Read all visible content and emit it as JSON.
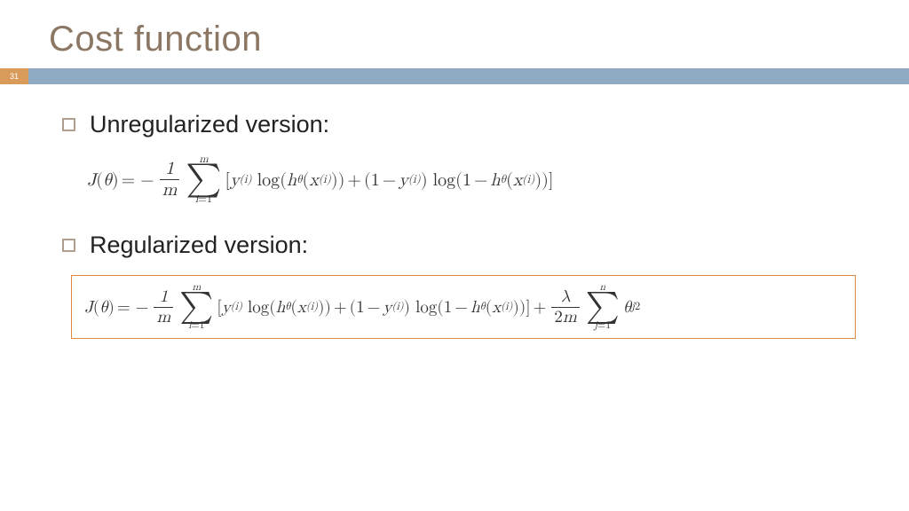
{
  "slide": {
    "number": "31",
    "title": "Cost function",
    "title_color": "#8b7763",
    "accent_left_color": "#d99b5a",
    "accent_right_color": "#8fabc4",
    "background_color": "#ffffff"
  },
  "bullets": [
    {
      "label": "Unregularized version:"
    },
    {
      "label": "Regularized version:"
    }
  ],
  "math": {
    "label_J": "J",
    "label_theta": "θ",
    "label_m": "m",
    "label_n": "n",
    "label_i": "i",
    "label_j": "j",
    "label_y": "y",
    "label_x": "x",
    "label_h": "h",
    "label_lambda": "λ",
    "label_log": "log",
    "label_one": "1",
    "label_two": "2",
    "label_eq": "=",
    "label_minus": "−",
    "label_plus": "+",
    "label_sum": "∑",
    "highlight_border_color": "#e08a3e",
    "formulas": {
      "unregularized": "J(θ) = −(1/m) Σ_{i=1}^{m} [ y^(i) log(h_θ(x^(i))) + (1 − y^(i)) log(1 − h_θ(x^(i))) ]",
      "regularized": "J(θ) = −(1/m) Σ_{i=1}^{m} [ y^(i) log(h_θ(x^(i))) + (1 − y^(i)) log(1 − h_θ(x^(i))) ] + (λ / 2m) Σ_{j=1}^{n} θ_j^2"
    },
    "font_family": "serif-math",
    "base_fontsize_pt": 15
  }
}
